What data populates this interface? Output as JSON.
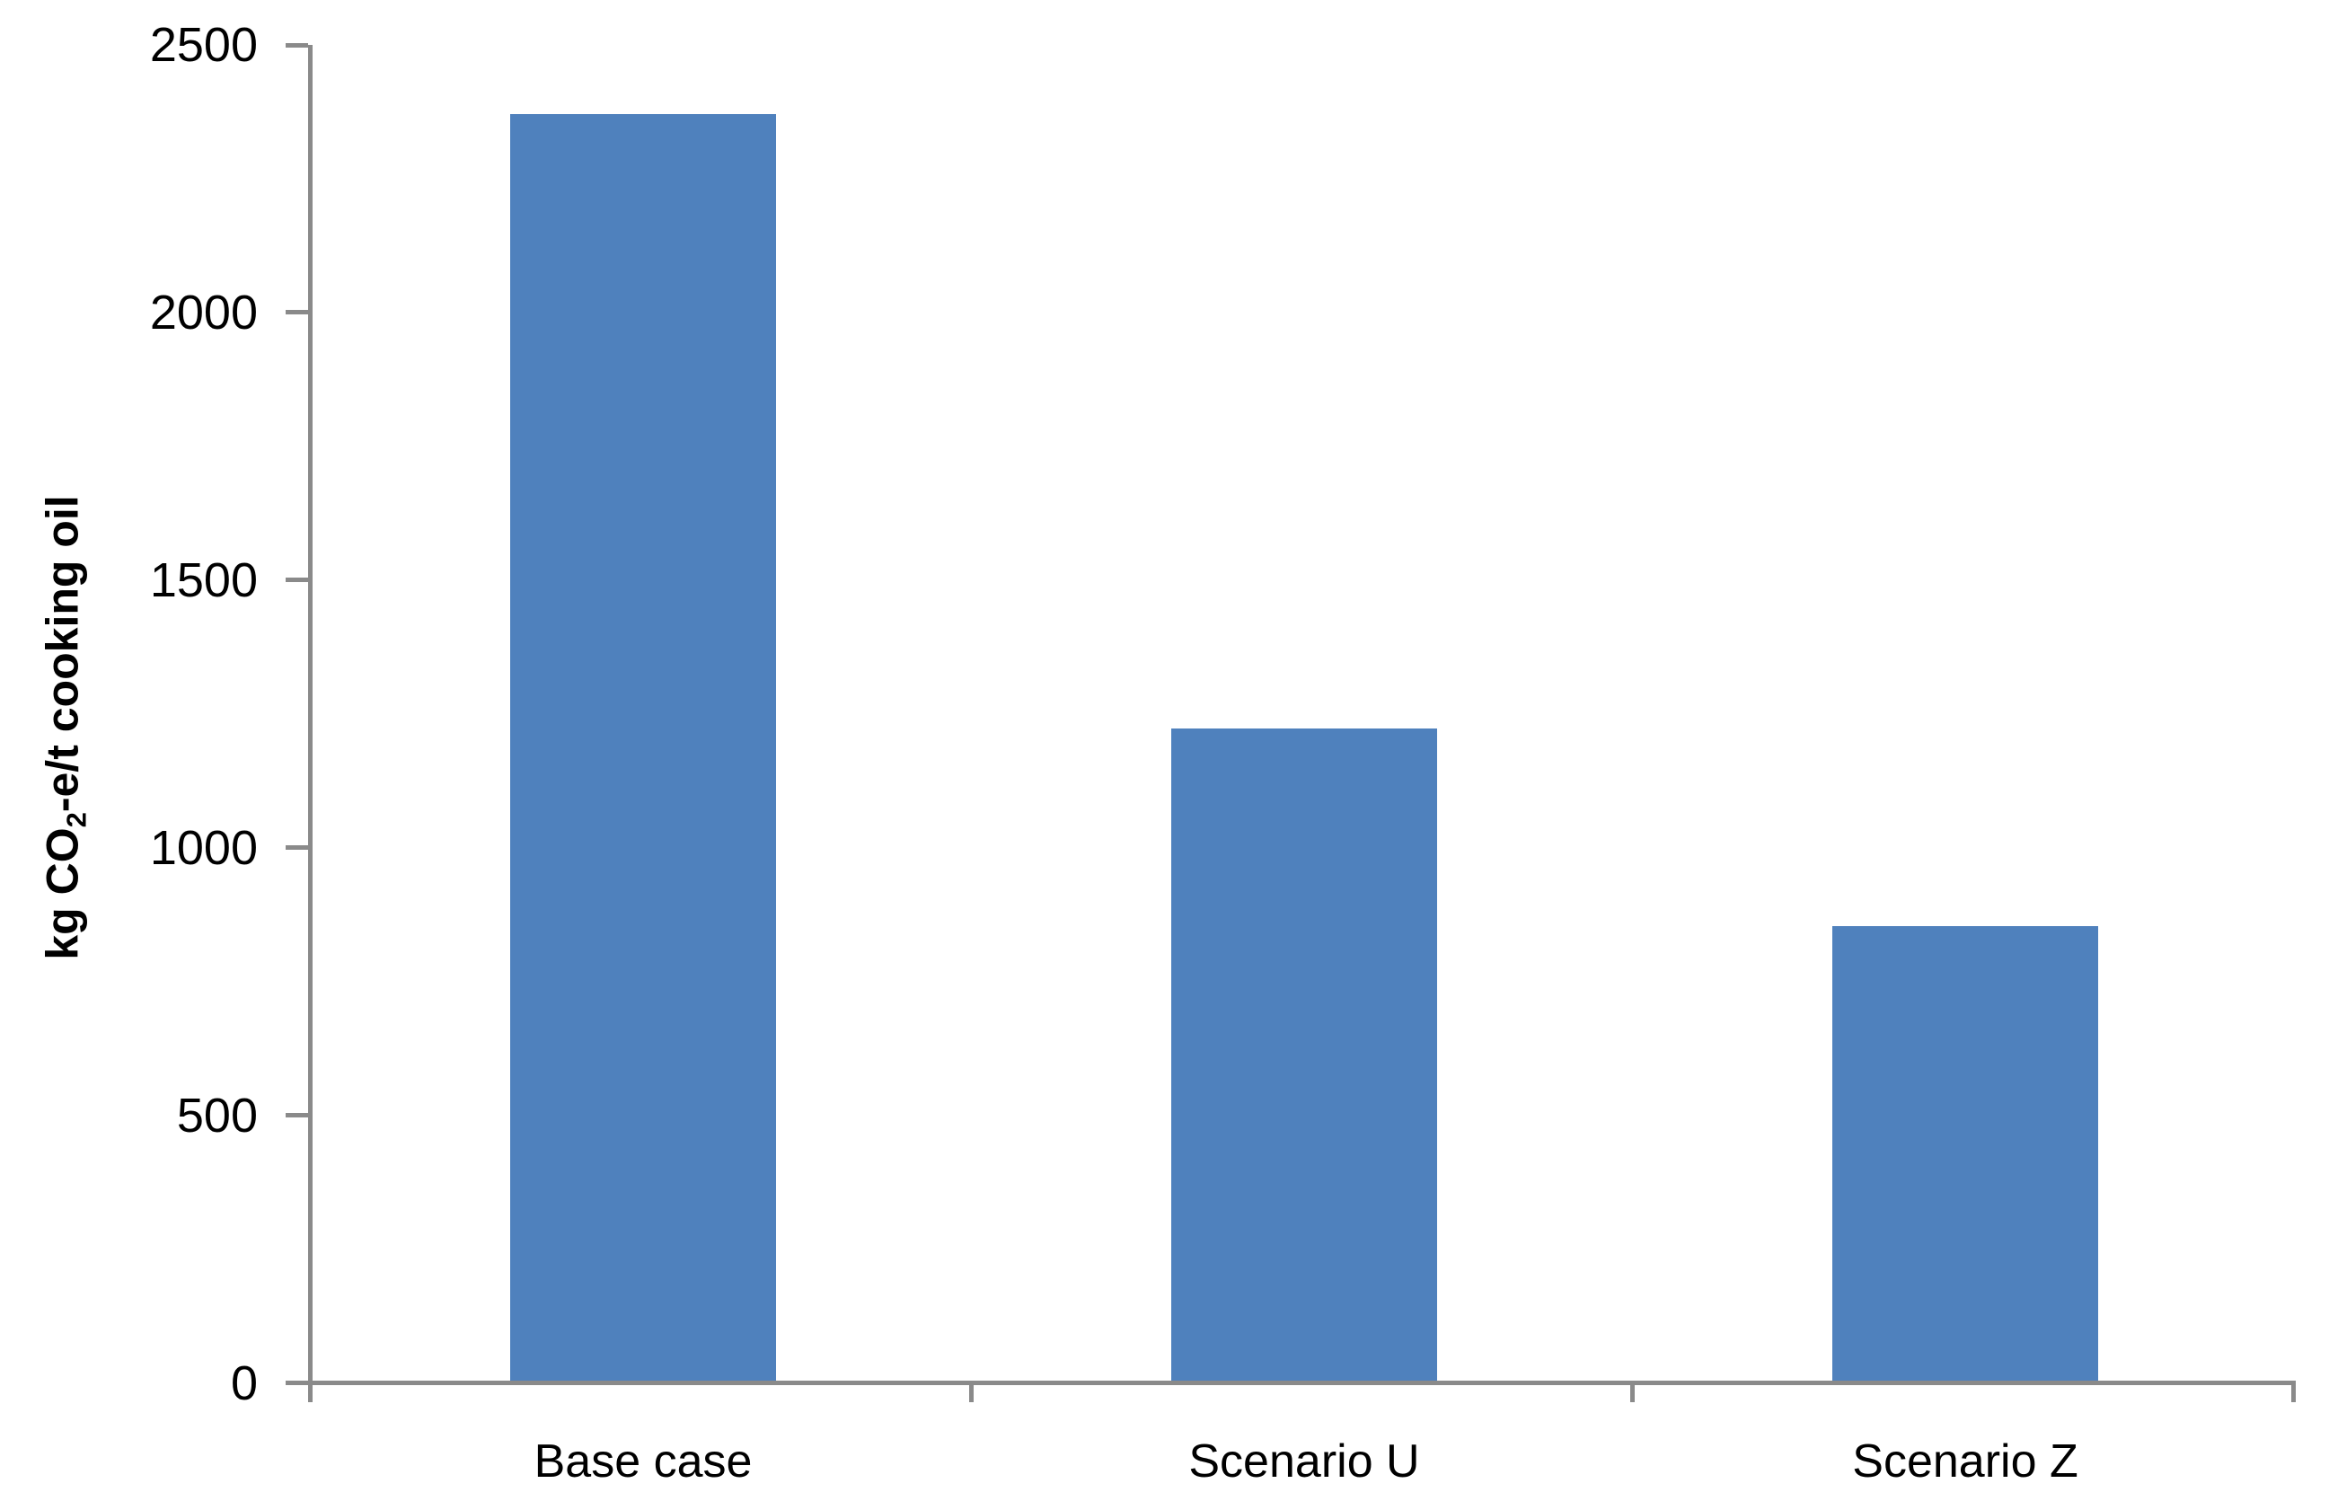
{
  "chart_data": {
    "type": "bar",
    "title": "",
    "categories": [
      "Base case",
      "Scenario U",
      "Scenario Z"
    ],
    "values": [
      2370,
      1220,
      850
    ],
    "series": [
      {
        "name": "kg CO2-e/t cooking oil",
        "values": [
          2370,
          1220,
          850
        ]
      }
    ],
    "xlabel": "",
    "ylabel": "kg CO2-e/t cooking oil",
    "ylabel_parts": {
      "pre": "kg CO",
      "sub": "2",
      "post": "-e/t cooking oil"
    },
    "ylim": [
      0,
      2500
    ],
    "yticks": [
      0,
      500,
      1000,
      1500,
      2000,
      2500
    ],
    "grid": false,
    "legend_position": "none",
    "colors": {
      "bar": "#4F81BD",
      "axis": "#8A8A8A",
      "text": "#000000",
      "background": "#FFFFFF"
    }
  }
}
